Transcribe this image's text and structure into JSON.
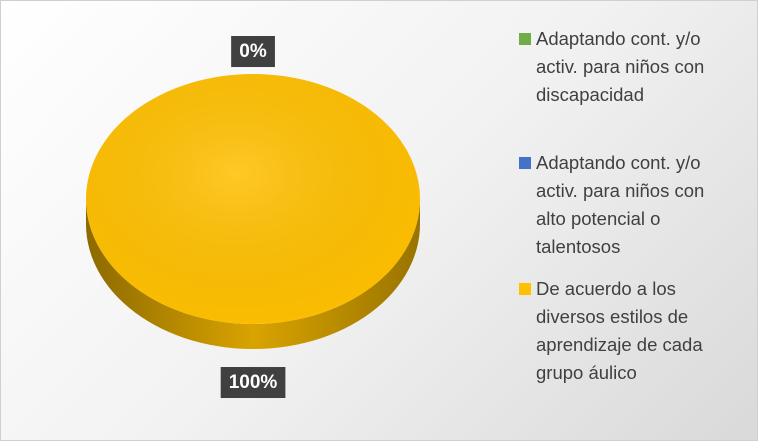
{
  "chart_data": {
    "type": "pie",
    "categories": [
      "Adaptando cont. y/o activ. para niños con discapacidad",
      "Adaptando cont. y/o activ. para niños con alto potencial o talentosos",
      "De acuerdo a los diversos estilos de aprendizaje de cada grupo áulico"
    ],
    "values": [
      0,
      0,
      100
    ],
    "value_labels": [
      "0%",
      "0%",
      "100%"
    ],
    "colors": [
      "#70ad47",
      "#4472c4",
      "#ffc000"
    ],
    "legend": "right"
  }
}
